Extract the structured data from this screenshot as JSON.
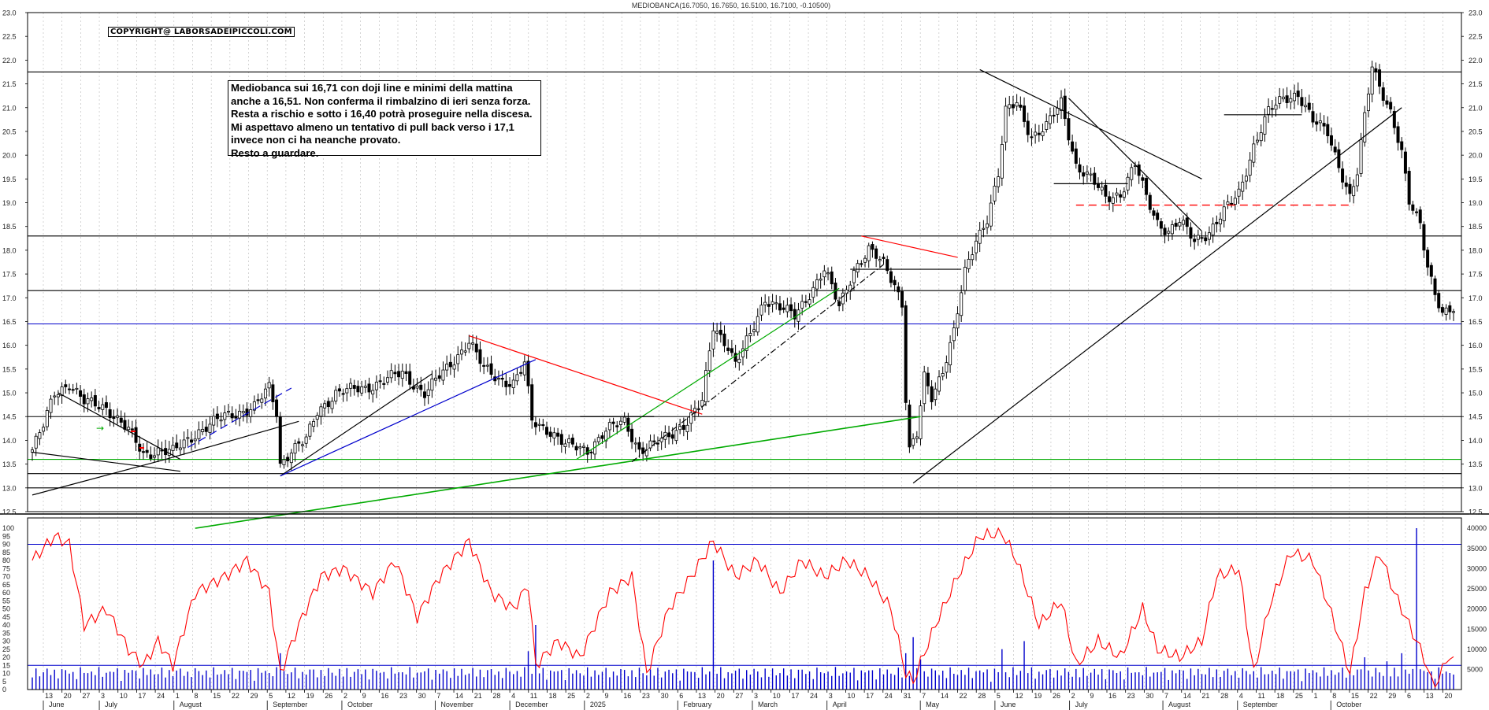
{
  "header": {
    "title": "MEDIOBANCA(16.7050, 16.7650, 16.5100, 16.7100, -0.10500)",
    "copyright": "COPYRIGHT@ LABORSADEIPICCOLI.COM"
  },
  "note": {
    "lines": [
      "Mediobanca sui 16,71 con doji line e minimi della mattina",
      "anche a 16,51. Non conferma il rimbalzino di ieri senza forza.",
      "Resta a rischio e sotto i 16,40 potrà proseguire nella discesa.",
      "Mi aspettavo almeno un tentativo di pull back verso i 17,1",
      "invece non ci ha neanche provato.",
      "Resto a guardare."
    ]
  },
  "chart_data": [
    {
      "type": "candlestick",
      "title": "MEDIOBANCA(16.7050, 16.7650, 16.5100, 16.7100, -0.10500)",
      "ylim": [
        12.5,
        23.0
      ],
      "y_ticks": [
        "12.5",
        "13.0",
        "13.5",
        "14.0",
        "14.5",
        "15.0",
        "15.5",
        "16.0",
        "16.5",
        "17.0",
        "17.5",
        "18.0",
        "18.5",
        "19.0",
        "19.5",
        "20.0",
        "20.5",
        "21.0",
        "21.5",
        "22.0",
        "22.5",
        "23.0"
      ],
      "grid": "vertical dotted",
      "last": {
        "open": 16.705,
        "high": 16.765,
        "low": 16.51,
        "close": 16.71,
        "change": -0.105
      },
      "anchors": [
        {
          "i": 0,
          "p": 13.8
        },
        {
          "i": 3,
          "p": 14.3
        },
        {
          "i": 6,
          "p": 15.0
        },
        {
          "i": 10,
          "p": 15.2
        },
        {
          "i": 14,
          "p": 14.8
        },
        {
          "i": 20,
          "p": 14.7
        },
        {
          "i": 26,
          "p": 14.2
        },
        {
          "i": 30,
          "p": 13.7
        },
        {
          "i": 34,
          "p": 13.8
        },
        {
          "i": 38,
          "p": 13.75
        },
        {
          "i": 45,
          "p": 14.2
        },
        {
          "i": 52,
          "p": 14.5
        },
        {
          "i": 60,
          "p": 14.7
        },
        {
          "i": 64,
          "p": 15.1
        },
        {
          "i": 66,
          "p": 14.6
        },
        {
          "i": 67,
          "p": 13.5
        },
        {
          "i": 70,
          "p": 13.8
        },
        {
          "i": 74,
          "p": 14.0
        },
        {
          "i": 77,
          "p": 14.6
        },
        {
          "i": 82,
          "p": 15.0
        },
        {
          "i": 90,
          "p": 15.1
        },
        {
          "i": 96,
          "p": 15.3
        },
        {
          "i": 100,
          "p": 15.4
        },
        {
          "i": 106,
          "p": 15.0
        },
        {
          "i": 112,
          "p": 15.5
        },
        {
          "i": 118,
          "p": 16.1
        },
        {
          "i": 122,
          "p": 15.5
        },
        {
          "i": 126,
          "p": 15.3
        },
        {
          "i": 130,
          "p": 15.2
        },
        {
          "i": 133,
          "p": 15.6
        },
        {
          "i": 135,
          "p": 14.4
        },
        {
          "i": 140,
          "p": 14.2
        },
        {
          "i": 144,
          "p": 13.9
        },
        {
          "i": 150,
          "p": 13.8
        },
        {
          "i": 155,
          "p": 14.2
        },
        {
          "i": 160,
          "p": 14.4
        },
        {
          "i": 164,
          "p": 13.8
        },
        {
          "i": 168,
          "p": 13.9
        },
        {
          "i": 172,
          "p": 14.1
        },
        {
          "i": 177,
          "p": 14.4
        },
        {
          "i": 181,
          "p": 14.8
        },
        {
          "i": 184,
          "p": 16.4
        },
        {
          "i": 188,
          "p": 16.0
        },
        {
          "i": 190,
          "p": 15.6
        },
        {
          "i": 194,
          "p": 16.2
        },
        {
          "i": 198,
          "p": 17.0
        },
        {
          "i": 202,
          "p": 16.8
        },
        {
          "i": 206,
          "p": 16.6
        },
        {
          "i": 210,
          "p": 17.1
        },
        {
          "i": 214,
          "p": 17.6
        },
        {
          "i": 218,
          "p": 16.8
        },
        {
          "i": 222,
          "p": 17.6
        },
        {
          "i": 226,
          "p": 18.0
        },
        {
          "i": 230,
          "p": 17.7
        },
        {
          "i": 233,
          "p": 17.3
        },
        {
          "i": 235,
          "p": 16.9
        },
        {
          "i": 236,
          "p": 14.9
        },
        {
          "i": 237,
          "p": 13.8
        },
        {
          "i": 239,
          "p": 14.1
        },
        {
          "i": 241,
          "p": 15.3
        },
        {
          "i": 243,
          "p": 14.9
        },
        {
          "i": 246,
          "p": 15.5
        },
        {
          "i": 249,
          "p": 16.3
        },
        {
          "i": 252,
          "p": 17.5
        },
        {
          "i": 255,
          "p": 18.2
        },
        {
          "i": 258,
          "p": 18.7
        },
        {
          "i": 261,
          "p": 19.6
        },
        {
          "i": 263,
          "p": 20.9
        },
        {
          "i": 266,
          "p": 21.1
        },
        {
          "i": 270,
          "p": 20.4
        },
        {
          "i": 274,
          "p": 20.6
        },
        {
          "i": 278,
          "p": 21.1
        },
        {
          "i": 282,
          "p": 19.8
        },
        {
          "i": 286,
          "p": 19.5
        },
        {
          "i": 290,
          "p": 19.1
        },
        {
          "i": 294,
          "p": 19.2
        },
        {
          "i": 298,
          "p": 19.8
        },
        {
          "i": 301,
          "p": 19.1
        },
        {
          "i": 304,
          "p": 18.6
        },
        {
          "i": 307,
          "p": 18.4
        },
        {
          "i": 310,
          "p": 18.6
        },
        {
          "i": 314,
          "p": 18.2
        },
        {
          "i": 318,
          "p": 18.4
        },
        {
          "i": 322,
          "p": 18.8
        },
        {
          "i": 326,
          "p": 19.2
        },
        {
          "i": 330,
          "p": 20.2
        },
        {
          "i": 334,
          "p": 20.9
        },
        {
          "i": 338,
          "p": 21.2
        },
        {
          "i": 342,
          "p": 21.3
        },
        {
          "i": 346,
          "p": 20.7
        },
        {
          "i": 350,
          "p": 20.5
        },
        {
          "i": 353,
          "p": 19.8
        },
        {
          "i": 356,
          "p": 19.1
        },
        {
          "i": 358,
          "p": 19.6
        },
        {
          "i": 360,
          "p": 20.8
        },
        {
          "i": 362,
          "p": 21.9
        },
        {
          "i": 364,
          "p": 21.5
        },
        {
          "i": 367,
          "p": 20.9
        },
        {
          "i": 370,
          "p": 20.0
        },
        {
          "i": 372,
          "p": 19.0
        },
        {
          "i": 375,
          "p": 18.6
        },
        {
          "i": 377,
          "p": 17.7
        },
        {
          "i": 379,
          "p": 17.1
        },
        {
          "i": 381,
          "p": 16.6
        },
        {
          "i": 383,
          "p": 16.71
        }
      ],
      "horizontal_levels": [
        {
          "price": 21.75,
          "color": "#000000"
        },
        {
          "price": 18.3,
          "color": "#000000"
        },
        {
          "price": 17.15,
          "color": "#000000"
        },
        {
          "price": 16.45,
          "color": "#0000cc"
        },
        {
          "price": 14.5,
          "color": "#000000"
        },
        {
          "price": 13.6,
          "color": "#00aa00"
        },
        {
          "price": 13.3,
          "color": "#000000"
        },
        {
          "price": 13.0,
          "color": "#000000"
        }
      ],
      "colors": {
        "up": "#ffffff",
        "down": "#000000",
        "support": "#00aa00",
        "resistance": "#ff0000",
        "trend": "#0000cc"
      }
    },
    {
      "type": "line+bar",
      "series": [
        {
          "type": "line",
          "color": "#ff0000"
        },
        {
          "type": "bar",
          "color": "#0000cc"
        }
      ],
      "left_ticks": [
        "0",
        "5",
        "10",
        "15",
        "20",
        "25",
        "30",
        "35",
        "40",
        "45",
        "50",
        "55",
        "60",
        "65",
        "70",
        "75",
        "80",
        "85",
        "90",
        "95",
        "100"
      ],
      "right_ticks": [
        "5000",
        "10000",
        "15000",
        "20000",
        "25000",
        "30000",
        "35000",
        "40000"
      ],
      "ylim_left": [
        0,
        100
      ],
      "ylim_right": [
        0,
        42000
      ],
      "reference_levels": [
        90,
        15
      ],
      "oscillator_anchors": [
        {
          "i": 0,
          "v": 80
        },
        {
          "i": 6,
          "v": 95
        },
        {
          "i": 10,
          "v": 90
        },
        {
          "i": 14,
          "v": 40
        },
        {
          "i": 20,
          "v": 50
        },
        {
          "i": 26,
          "v": 25
        },
        {
          "i": 30,
          "v": 15
        },
        {
          "i": 34,
          "v": 30
        },
        {
          "i": 38,
          "v": 15
        },
        {
          "i": 44,
          "v": 60
        },
        {
          "i": 52,
          "v": 70
        },
        {
          "i": 58,
          "v": 80
        },
        {
          "i": 64,
          "v": 60
        },
        {
          "i": 67,
          "v": 10
        },
        {
          "i": 72,
          "v": 40
        },
        {
          "i": 78,
          "v": 70
        },
        {
          "i": 84,
          "v": 75
        },
        {
          "i": 92,
          "v": 60
        },
        {
          "i": 98,
          "v": 80
        },
        {
          "i": 104,
          "v": 45
        },
        {
          "i": 110,
          "v": 70
        },
        {
          "i": 118,
          "v": 92
        },
        {
          "i": 124,
          "v": 60
        },
        {
          "i": 130,
          "v": 50
        },
        {
          "i": 134,
          "v": 65
        },
        {
          "i": 136,
          "v": 15
        },
        {
          "i": 142,
          "v": 30
        },
        {
          "i": 148,
          "v": 20
        },
        {
          "i": 156,
          "v": 60
        },
        {
          "i": 162,
          "v": 70
        },
        {
          "i": 166,
          "v": 10
        },
        {
          "i": 172,
          "v": 50
        },
        {
          "i": 178,
          "v": 70
        },
        {
          "i": 184,
          "v": 92
        },
        {
          "i": 190,
          "v": 70
        },
        {
          "i": 196,
          "v": 80
        },
        {
          "i": 202,
          "v": 60
        },
        {
          "i": 208,
          "v": 80
        },
        {
          "i": 214,
          "v": 70
        },
        {
          "i": 220,
          "v": 80
        },
        {
          "i": 226,
          "v": 70
        },
        {
          "i": 232,
          "v": 50
        },
        {
          "i": 236,
          "v": 10
        },
        {
          "i": 238,
          "v": 5
        },
        {
          "i": 244,
          "v": 40
        },
        {
          "i": 250,
          "v": 70
        },
        {
          "i": 256,
          "v": 95
        },
        {
          "i": 262,
          "v": 97
        },
        {
          "i": 266,
          "v": 80
        },
        {
          "i": 272,
          "v": 40
        },
        {
          "i": 278,
          "v": 55
        },
        {
          "i": 282,
          "v": 15
        },
        {
          "i": 288,
          "v": 30
        },
        {
          "i": 294,
          "v": 20
        },
        {
          "i": 300,
          "v": 50
        },
        {
          "i": 304,
          "v": 25
        },
        {
          "i": 310,
          "v": 20
        },
        {
          "i": 316,
          "v": 30
        },
        {
          "i": 320,
          "v": 70
        },
        {
          "i": 326,
          "v": 75
        },
        {
          "i": 330,
          "v": 10
        },
        {
          "i": 334,
          "v": 50
        },
        {
          "i": 340,
          "v": 85
        },
        {
          "i": 346,
          "v": 80
        },
        {
          "i": 352,
          "v": 40
        },
        {
          "i": 356,
          "v": 10
        },
        {
          "i": 360,
          "v": 60
        },
        {
          "i": 364,
          "v": 85
        },
        {
          "i": 368,
          "v": 60
        },
        {
          "i": 372,
          "v": 40
        },
        {
          "i": 376,
          "v": 20
        },
        {
          "i": 378,
          "v": 5
        },
        {
          "i": 380,
          "v": 5
        },
        {
          "i": 382,
          "v": 20
        },
        {
          "i": 384,
          "v": 17
        }
      ]
    }
  ],
  "x_axis": {
    "day_ticks": [
      "13",
      "20",
      "27",
      "3",
      "10",
      "17",
      "24",
      "1",
      "8",
      "15",
      "22",
      "29",
      "5",
      "12",
      "19",
      "26",
      "2",
      "9",
      "16",
      "23",
      "30",
      "7",
      "14",
      "21",
      "28",
      "4",
      "11",
      "18",
      "25",
      "2",
      "9",
      "16",
      "23",
      "30",
      "6",
      "13",
      "20",
      "27",
      "3",
      "10",
      "17",
      "24",
      "3",
      "10",
      "17",
      "24",
      "31",
      "7",
      "14",
      "22",
      "28",
      "5",
      "12",
      "19",
      "26",
      "2",
      "9",
      "16",
      "23",
      "30",
      "7",
      "14",
      "21",
      "28",
      "4",
      "11",
      "18",
      "25",
      "1",
      "8",
      "15",
      "22",
      "29",
      "6",
      "13",
      "20"
    ],
    "month_labels": [
      "June",
      "July",
      "August",
      "September",
      "October",
      "November",
      "December",
      "2025",
      "February",
      "March",
      "April",
      "May",
      "June",
      "July",
      "August",
      "September",
      "October"
    ]
  }
}
